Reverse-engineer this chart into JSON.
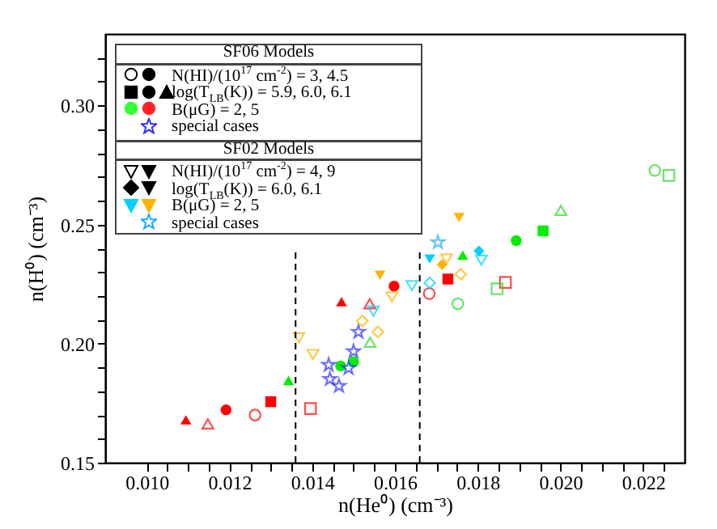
{
  "chart_data": {
    "type": "scatter",
    "xlabel": "n(He⁰) (cm⁻³)",
    "ylabel": "n(H⁰) (cm⁻³)",
    "xlim": [
      0.009,
      0.023
    ],
    "ylim": [
      0.15,
      0.33
    ],
    "xticks": [
      {
        "value": 0.01,
        "label": "0.010"
      },
      {
        "value": 0.0105,
        "label": null
      },
      {
        "value": 0.011,
        "label": null
      },
      {
        "value": 0.0115,
        "label": null
      },
      {
        "value": 0.012,
        "label": "0.012"
      },
      {
        "value": 0.0125,
        "label": null
      },
      {
        "value": 0.013,
        "label": null
      },
      {
        "value": 0.0135,
        "label": null
      },
      {
        "value": 0.014,
        "label": "0.014"
      },
      {
        "value": 0.0145,
        "label": null
      },
      {
        "value": 0.015,
        "label": null
      },
      {
        "value": 0.0155,
        "label": null
      },
      {
        "value": 0.016,
        "label": "0.016"
      },
      {
        "value": 0.0165,
        "label": null
      },
      {
        "value": 0.017,
        "label": null
      },
      {
        "value": 0.0175,
        "label": null
      },
      {
        "value": 0.018,
        "label": "0.018"
      },
      {
        "value": 0.0185,
        "label": null
      },
      {
        "value": 0.019,
        "label": null
      },
      {
        "value": 0.0195,
        "label": null
      },
      {
        "value": 0.02,
        "label": "0.020"
      },
      {
        "value": 0.0205,
        "label": null
      },
      {
        "value": 0.021,
        "label": null
      },
      {
        "value": 0.0215,
        "label": null
      },
      {
        "value": 0.022,
        "label": "0.022"
      },
      {
        "value": 0.0225,
        "label": null
      }
    ],
    "yticks": [
      {
        "value": 0.15,
        "label": "0.15"
      },
      {
        "value": 0.16,
        "label": null
      },
      {
        "value": 0.17,
        "label": null
      },
      {
        "value": 0.18,
        "label": null
      },
      {
        "value": 0.19,
        "label": null
      },
      {
        "value": 0.2,
        "label": "0.20"
      },
      {
        "value": 0.21,
        "label": null
      },
      {
        "value": 0.22,
        "label": null
      },
      {
        "value": 0.23,
        "label": null
      },
      {
        "value": 0.24,
        "label": null
      },
      {
        "value": 0.25,
        "label": "0.25"
      },
      {
        "value": 0.26,
        "label": null
      },
      {
        "value": 0.27,
        "label": null
      },
      {
        "value": 0.28,
        "label": null
      },
      {
        "value": 0.29,
        "label": null
      },
      {
        "value": 0.3,
        "label": "0.30"
      },
      {
        "value": 0.31,
        "label": null
      },
      {
        "value": 0.32,
        "label": null
      }
    ],
    "grid": false,
    "ref_lines": [
      {
        "axis": "x",
        "value": 0.0136,
        "line_style": "dashed",
        "color": "#000000"
      },
      {
        "axis": "x",
        "value": 0.0166,
        "line_style": "dashed",
        "color": "#000000"
      }
    ],
    "annotations": [
      "SF06 Models",
      "N(HI)/(10$^{17}$ cm$^{-2}$) = 3, 4.5",
      "log(T$_{LB}$(K)) = 5.9, 6.0, 6.1",
      "B(μG) = 2, 5",
      "special cases",
      "SF02 Models",
      "N(HI)/(10$^{17}$ cm$^{-2}$) = 4, 9",
      "log(T$_{LB}$(K)) = 6.0, 6.1",
      "B(μG) = 2, 5",
      "special cases"
    ],
    "series": [
      {
        "color": "#ff0000",
        "marker": "triangle",
        "x": [
          0.01095,
          0.01471
        ],
        "values": [
          0.168,
          0.2176
        ]
      },
      {
        "color": "#ff0000",
        "marker": "triangle-open",
        "x": [
          0.01148,
          0.01539
        ],
        "values": [
          0.1663,
          0.2167
        ]
      },
      {
        "color": "#ff0000",
        "marker": "circle",
        "x": [
          0.01192,
          0.01598
        ],
        "values": [
          0.1722,
          0.2241
        ]
      },
      {
        "color": "#ff0000",
        "marker": "circle-open",
        "x": [
          0.01262,
          0.01683
        ],
        "values": [
          0.17,
          0.221
        ]
      },
      {
        "color": "#ff0000",
        "marker": "square",
        "x": [
          0.013,
          0.01728
        ],
        "values": [
          0.1756,
          0.2271
        ]
      },
      {
        "color": "#ff0000",
        "marker": "square-open",
        "x": [
          0.01396,
          0.01867
        ],
        "values": [
          0.1727,
          0.2257
        ]
      },
      {
        "color": "#00ee00",
        "marker": "triangle",
        "x": [
          0.01343,
          0.01764
        ],
        "values": [
          0.1845,
          0.2371
        ]
      },
      {
        "color": "#22dd22",
        "marker": "triangle-open",
        "x": [
          0.0154,
          0.02001
        ],
        "values": [
          0.2006,
          0.2559
        ]
      },
      {
        "color": "#00ee00",
        "marker": "circle",
        "x": [
          0.01469,
          0.015,
          0.01893
        ],
        "values": [
          0.1906,
          0.1924,
          0.2432
        ]
      },
      {
        "color": "#22dd22",
        "marker": "circle-open",
        "x": [
          0.01752,
          0.02228
        ],
        "values": [
          0.2167,
          0.2727
        ]
      },
      {
        "color": "#00ee00",
        "marker": "square",
        "x": [
          0.01958
        ],
        "values": [
          0.2473
        ]
      },
      {
        "color": "#22dd22",
        "marker": "square-open",
        "x": [
          0.01847,
          0.02262
        ],
        "values": [
          0.223,
          0.2706
        ]
      },
      {
        "color": "#3030ff",
        "marker": "star-open",
        "x": [
          0.0144,
          0.01443,
          0.01465,
          0.01488,
          0.015,
          0.01512
        ],
        "values": [
          0.191,
          0.1851,
          0.1822,
          0.1897,
          0.1967,
          0.2049
        ]
      },
      {
        "color": "#ffb300",
        "marker": "triangle-down-open",
        "x": [
          0.01368,
          0.01402,
          0.01593,
          0.01725
        ],
        "values": [
          0.2024,
          0.1954,
          0.2196,
          0.2355
        ]
      },
      {
        "color": "#ffb300",
        "marker": "triangle-down",
        "x": [
          0.01564,
          0.01755
        ],
        "values": [
          0.2287,
          0.2529
        ]
      },
      {
        "color": "#ffb300",
        "marker": "diamond-open",
        "x": [
          0.01521,
          0.01559,
          0.01759
        ],
        "values": [
          0.2095,
          0.2049,
          0.2291
        ]
      },
      {
        "color": "#ffb300",
        "marker": "diamond",
        "x": [
          0.01714
        ],
        "values": [
          0.2332
        ]
      },
      {
        "color": "#00d0ff",
        "marker": "triangle-down-open",
        "x": [
          0.01548,
          0.01641,
          0.01809
        ],
        "values": [
          0.2136,
          0.2243,
          0.235
        ]
      },
      {
        "color": "#00d0ff",
        "marker": "triangle-down",
        "x": [
          0.01684
        ],
        "values": [
          0.2355
        ]
      },
      {
        "color": "#00d0ff",
        "marker": "diamond-open",
        "x": [
          0.01684
        ],
        "values": [
          0.2255
        ]
      },
      {
        "color": "#00d0ff",
        "marker": "diamond",
        "x": [
          0.01803
        ],
        "values": [
          0.2389
        ]
      },
      {
        "color": "#22aaff",
        "marker": "star-open",
        "x": [
          0.01704
        ],
        "values": [
          0.2425
        ]
      }
    ]
  }
}
